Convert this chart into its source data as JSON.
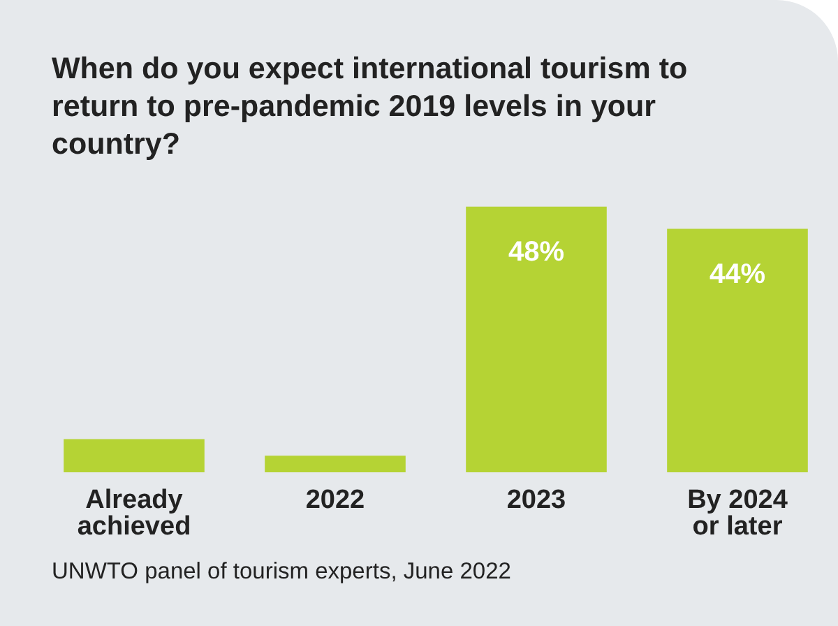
{
  "chart_data": {
    "type": "bar",
    "title": "When do you expect international tourism to return to pre-pandemic 2019 levels in your country?",
    "categories": [
      "Already\nachieved",
      "2022",
      "2023",
      "By 2024\nor later"
    ],
    "values": [
      6,
      3,
      48,
      44
    ],
    "value_labels": [
      null,
      null,
      "48%",
      "44%"
    ],
    "color": "#b5d334",
    "tick_labels": "x",
    "grid": false,
    "legend": false,
    "annotations": [
      "UNWTO panel of tourism experts, June 2022"
    ]
  }
}
